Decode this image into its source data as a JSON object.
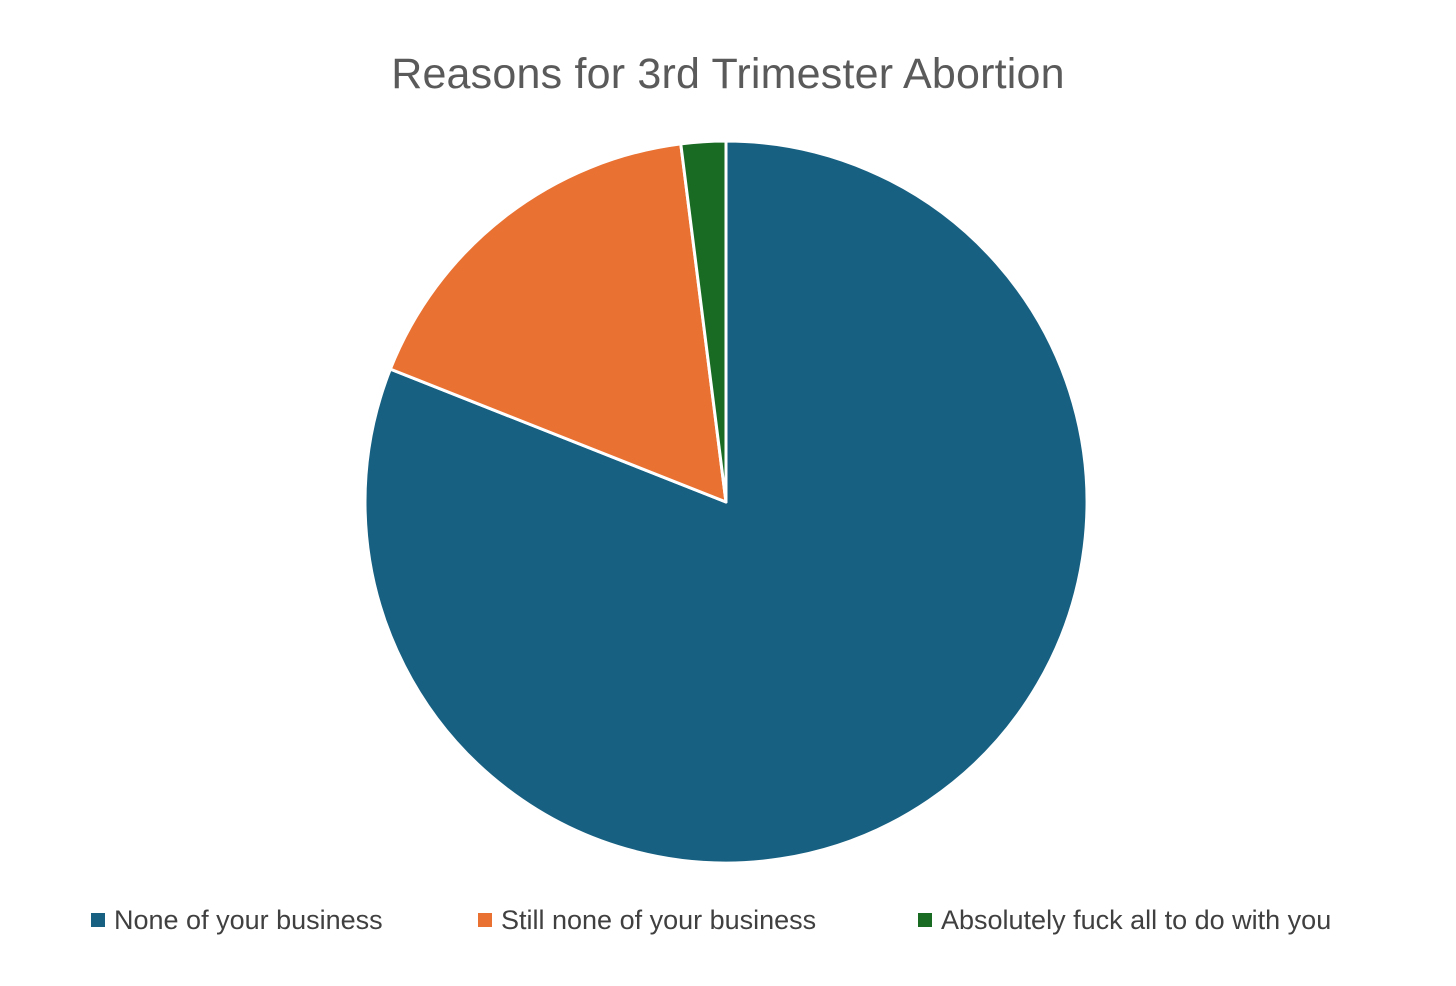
{
  "chart_data": {
    "type": "pie",
    "title": "Reasons for 3rd Trimester Abortion",
    "categories": [
      "None of your business",
      "Still none of your business",
      "Absolutely fuck all to do with you"
    ],
    "values": [
      81,
      17,
      2
    ],
    "colors": [
      "#176082",
      "#E97132",
      "#196B24"
    ],
    "start_angle_deg": 0,
    "direction": "clockwise",
    "slice_border_color": "#ffffff",
    "legend_position": "bottom",
    "data_labels": false
  }
}
